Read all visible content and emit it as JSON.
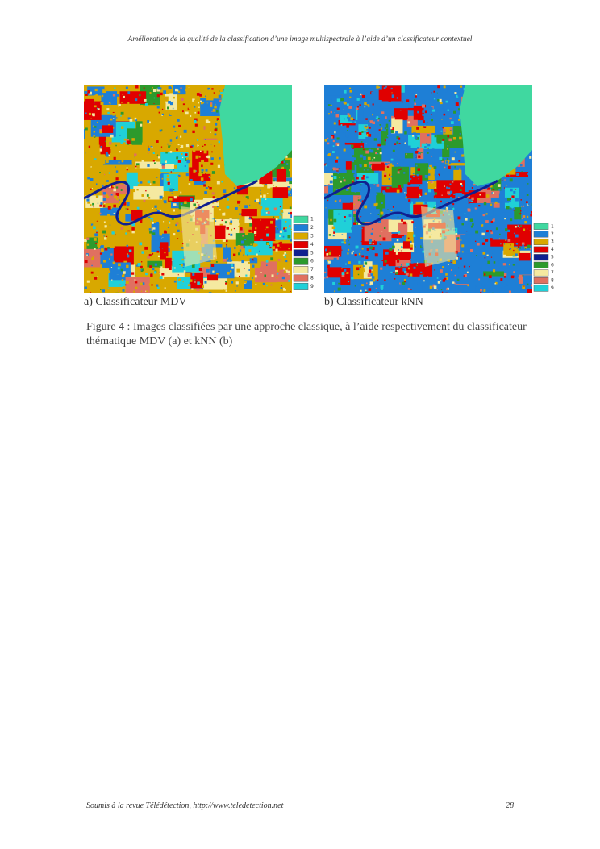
{
  "header": "Amélioration de la qualité de la classification d’une image multispectrale à l’aide d’un classificateur contextuel",
  "figures": [
    {
      "caption": "a) Classificateur MDV",
      "legend": [
        "1",
        "2",
        "3",
        "4",
        "5",
        "6",
        "7",
        "8",
        "9"
      ]
    },
    {
      "caption": "b) Classificateur kNN",
      "legend": [
        "1",
        "2",
        "3",
        "4",
        "5",
        "6",
        "7",
        "8",
        "9"
      ]
    }
  ],
  "figure_caption": "Figure 4 : Images classifiées par une approche classique, à l’aide respectivement du classificateur thématique MDV (a) et kNN (b)",
  "footer": {
    "text": "Soumis à la revue Télédétection, http://www.teledetection.net",
    "page": "28"
  }
}
